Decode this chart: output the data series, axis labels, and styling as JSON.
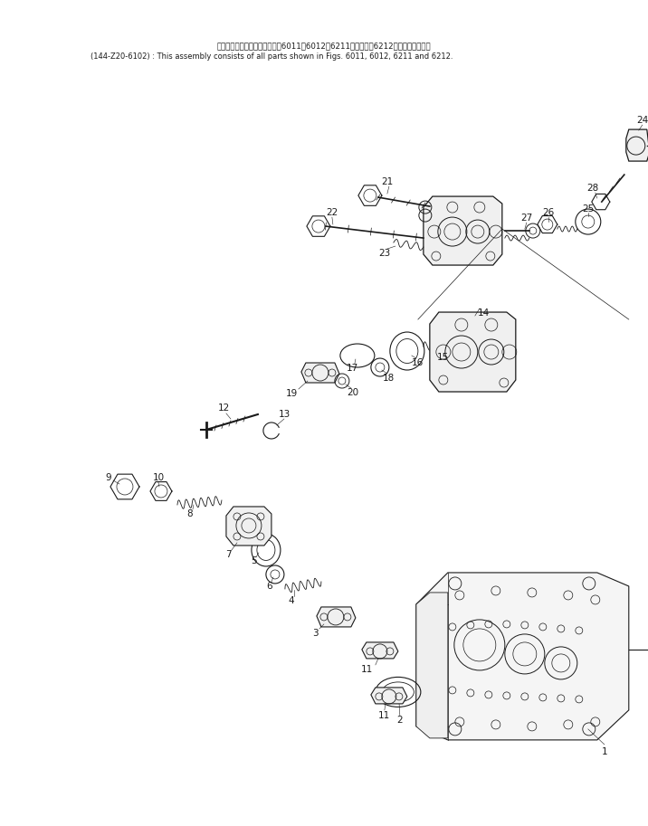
{
  "background_color": "#ffffff",
  "text_color": "#1a1a1a",
  "line_color": "#1a1a1a",
  "header_line1": "このアセンブリの構成部品は囶6011，6012，6211図および囶6212図まで含みます．",
  "header_line2": "(144-Z20-6102) : This assembly consists of all parts shown in Figs. 6011, 6012, 6211 and 6212.",
  "figsize": [
    7.16,
    9.13
  ],
  "dpi": 100
}
